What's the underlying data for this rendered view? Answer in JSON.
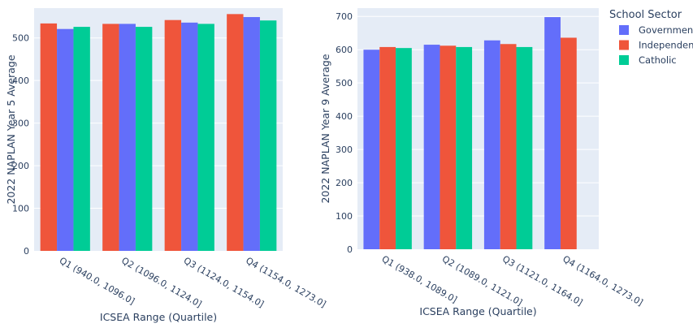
{
  "colors": {
    "Government": "#636efa",
    "Independent": "#ef553b",
    "Catholic": "#00cc96",
    "plot_bg": "#e5ecf6",
    "grid": "#ffffff",
    "text": "#2a3f5f"
  },
  "legend": {
    "title": "School Sector",
    "items": [
      "Government",
      "Independent",
      "Catholic"
    ],
    "placement": "top-right"
  },
  "chart_data": [
    {
      "type": "bar",
      "xlabel": "ICSEA Range (Quartile)",
      "ylabel": "2022 NAPLAN Year 5 Average",
      "ylim": [
        0,
        570
      ],
      "yticks": [
        0,
        100,
        200,
        300,
        400,
        500
      ],
      "grid": true,
      "categories": [
        "Q1 (940.0, 1096.0]",
        "Q2 (1096.0, 1124.0]",
        "Q3 (1124.0, 1154.0]",
        "Q4 (1154.0, 1273.0]"
      ],
      "bar_order": [
        "Independent",
        "Government",
        "Catholic"
      ],
      "series": [
        {
          "name": "Government",
          "values": [
            521,
            533,
            536,
            549
          ]
        },
        {
          "name": "Independent",
          "values": [
            534,
            533,
            542,
            556
          ]
        },
        {
          "name": "Catholic",
          "values": [
            526,
            526,
            533,
            541
          ]
        }
      ]
    },
    {
      "type": "bar",
      "xlabel": "ICSEA Range (Quartile)",
      "ylabel": "2022 NAPLAN Year 9 Average",
      "ylim": [
        0,
        725
      ],
      "yticks": [
        0,
        100,
        200,
        300,
        400,
        500,
        600,
        700
      ],
      "grid": true,
      "categories": [
        "Q1 (938.0, 1089.0]",
        "Q2 (1089.0, 1121.0]",
        "Q3 (1121.0, 1164.0]",
        "Q4 (1164.0, 1273.0]"
      ],
      "bar_order": [
        "Government",
        "Independent",
        "Catholic"
      ],
      "series": [
        {
          "name": "Government",
          "values": [
            600,
            615,
            628,
            698
          ]
        },
        {
          "name": "Independent",
          "values": [
            608,
            612,
            617,
            636
          ]
        },
        {
          "name": "Catholic",
          "values": [
            605,
            608,
            608,
            null
          ]
        }
      ]
    }
  ]
}
